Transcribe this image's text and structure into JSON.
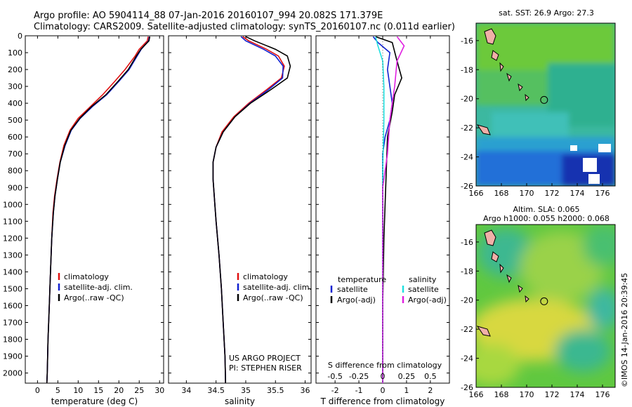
{
  "header": {
    "line1": "Argo profile: AO 5904114_88 07-Jan-2016 20160107_994 20.082S 171.379E",
    "line2": "Climatology: CARS2009. Satellite-adjusted climatology: synTS_20160107.nc (0.011d earlier)"
  },
  "colors": {
    "clim": "#e01010",
    "sat": "#1020d0",
    "argo": "#000000",
    "sat_s": "#20e0e0",
    "argo_s": "#e020e0"
  },
  "chart_data": [
    {
      "type": "line",
      "xlabel": "temperature (deg C)",
      "ylabel": "",
      "xlim": [
        -3,
        31
      ],
      "ylim": [
        2060,
        0
      ],
      "xticks": [
        0,
        5,
        10,
        15,
        20,
        25,
        30
      ],
      "yticks": [
        0,
        100,
        200,
        300,
        400,
        500,
        600,
        700,
        800,
        900,
        1000,
        1100,
        1200,
        1300,
        1400,
        1500,
        1600,
        1700,
        1800,
        1900,
        2000
      ],
      "legend": [
        "climatology",
        "satellite-adj. clim.",
        "Argo(..raw -QC)"
      ],
      "series": [
        {
          "name": "climatology",
          "color_key": "clim",
          "points": [
            [
              27.2,
              5
            ],
            [
              27.0,
              30
            ],
            [
              25.0,
              80
            ],
            [
              24.0,
              120
            ],
            [
              21.5,
              200
            ],
            [
              19.0,
              270
            ],
            [
              16.0,
              350
            ],
            [
              13.0,
              420
            ],
            [
              10.0,
              490
            ],
            [
              8.0,
              560
            ],
            [
              6.5,
              650
            ],
            [
              5.5,
              750
            ],
            [
              4.8,
              850
            ],
            [
              4.2,
              950
            ],
            [
              3.8,
              1050
            ],
            [
              3.5,
              1200
            ],
            [
              3.2,
              1400
            ],
            [
              2.9,
              1600
            ],
            [
              2.6,
              1800
            ],
            [
              2.4,
              2000
            ],
            [
              2.3,
              2060
            ]
          ]
        },
        {
          "name": "satellite-adj. clim.",
          "color_key": "sat",
          "points": [
            [
              27.5,
              5
            ],
            [
              27.3,
              30
            ],
            [
              25.5,
              80
            ],
            [
              24.5,
              120
            ],
            [
              22.5,
              200
            ],
            [
              20.0,
              270
            ],
            [
              17.0,
              350
            ],
            [
              13.5,
              420
            ],
            [
              10.5,
              490
            ],
            [
              8.3,
              560
            ],
            [
              6.8,
              650
            ],
            [
              5.6,
              750
            ],
            [
              4.9,
              850
            ],
            [
              4.3,
              950
            ],
            [
              3.9,
              1050
            ],
            [
              3.5,
              1200
            ],
            [
              3.2,
              1400
            ],
            [
              2.9,
              1600
            ],
            [
              2.6,
              1800
            ],
            [
              2.4,
              2000
            ],
            [
              2.3,
              2060
            ]
          ]
        },
        {
          "name": "Argo(..raw -QC)",
          "color_key": "argo",
          "points": [
            [
              27.6,
              5
            ],
            [
              27.4,
              30
            ],
            [
              25.4,
              80
            ],
            [
              24.3,
              120
            ],
            [
              22.3,
              200
            ],
            [
              19.8,
              270
            ],
            [
              16.8,
              350
            ],
            [
              13.3,
              420
            ],
            [
              10.4,
              490
            ],
            [
              8.2,
              560
            ],
            [
              6.7,
              650
            ],
            [
              5.6,
              750
            ],
            [
              4.9,
              850
            ],
            [
              4.3,
              950
            ],
            [
              3.9,
              1050
            ],
            [
              3.5,
              1200
            ],
            [
              3.2,
              1400
            ],
            [
              2.9,
              1600
            ],
            [
              2.6,
              1800
            ],
            [
              2.4,
              2000
            ],
            [
              2.3,
              2060
            ]
          ]
        }
      ]
    },
    {
      "type": "line",
      "xlabel": "salinity",
      "ylabel": "",
      "xlim": [
        33.7,
        36.1
      ],
      "ylim": [
        2060,
        0
      ],
      "xticks": [
        34,
        34.5,
        35,
        35.5,
        36
      ],
      "legend": [
        "climatology",
        "satellite-adj. clim.",
        "Argo(..raw -QC)"
      ],
      "series": [
        {
          "name": "climatology",
          "color_key": "clim",
          "points": [
            [
              34.95,
              5
            ],
            [
              35.05,
              30
            ],
            [
              35.35,
              80
            ],
            [
              35.55,
              120
            ],
            [
              35.65,
              180
            ],
            [
              35.6,
              250
            ],
            [
              35.35,
              320
            ],
            [
              35.05,
              400
            ],
            [
              34.8,
              480
            ],
            [
              34.6,
              570
            ],
            [
              34.5,
              660
            ],
            [
              34.45,
              750
            ],
            [
              34.45,
              850
            ],
            [
              34.47,
              950
            ],
            [
              34.5,
              1100
            ],
            [
              34.55,
              1300
            ],
            [
              34.59,
              1500
            ],
            [
              34.62,
              1700
            ],
            [
              34.65,
              1900
            ],
            [
              34.66,
              2060
            ]
          ]
        },
        {
          "name": "satellite-adj. clim.",
          "color_key": "sat",
          "points": [
            [
              34.92,
              5
            ],
            [
              35.0,
              30
            ],
            [
              35.3,
              80
            ],
            [
              35.5,
              120
            ],
            [
              35.63,
              180
            ],
            [
              35.62,
              250
            ],
            [
              35.38,
              320
            ],
            [
              35.07,
              400
            ],
            [
              34.82,
              480
            ],
            [
              34.62,
              570
            ],
            [
              34.5,
              660
            ],
            [
              34.45,
              750
            ],
            [
              34.45,
              850
            ],
            [
              34.47,
              950
            ],
            [
              34.5,
              1100
            ],
            [
              34.55,
              1300
            ],
            [
              34.59,
              1500
            ],
            [
              34.62,
              1700
            ],
            [
              34.65,
              1900
            ],
            [
              34.66,
              2060
            ]
          ]
        },
        {
          "name": "Argo(..raw -QC)",
          "color_key": "argo",
          "points": [
            [
              35.0,
              5
            ],
            [
              35.15,
              30
            ],
            [
              35.5,
              80
            ],
            [
              35.7,
              120
            ],
            [
              35.75,
              180
            ],
            [
              35.7,
              250
            ],
            [
              35.42,
              320
            ],
            [
              35.08,
              400
            ],
            [
              34.82,
              480
            ],
            [
              34.62,
              570
            ],
            [
              34.5,
              660
            ],
            [
              34.45,
              750
            ],
            [
              34.45,
              850
            ],
            [
              34.47,
              950
            ],
            [
              34.5,
              1100
            ],
            [
              34.55,
              1300
            ],
            [
              34.59,
              1500
            ],
            [
              34.62,
              1700
            ],
            [
              34.65,
              1900
            ],
            [
              34.66,
              2060
            ]
          ]
        }
      ],
      "annotations": [
        "US ARGO PROJECT",
        "PI: STEPHEN RISER"
      ]
    },
    {
      "type": "line",
      "xlabel": "T difference from climatology",
      "xlabel2": "S difference from climatology",
      "xlim": [
        -2.8,
        2.8
      ],
      "ylim": [
        2060,
        0
      ],
      "xticks": [
        -2,
        -1,
        0,
        1,
        2
      ],
      "xticks_s": [
        "-0.5",
        "-0.25",
        "0",
        "0.25",
        "0.5"
      ],
      "legend_t_title": "temperature",
      "legend_s_title": "salinity",
      "legend": [
        "satellite",
        "Argo(-adj)",
        "satellite",
        "Argo(-adj)"
      ],
      "series": [
        {
          "name": "satellite",
          "color_key": "sat",
          "points": [
            [
              -0.4,
              5
            ],
            [
              -0.2,
              40
            ],
            [
              0.3,
              100
            ],
            [
              0.2,
              200
            ],
            [
              0.3,
              300
            ],
            [
              0.4,
              400
            ],
            [
              0.3,
              500
            ],
            [
              0.1,
              600
            ],
            [
              0.0,
              700
            ],
            [
              0.0,
              900
            ],
            [
              0.0,
              1200
            ],
            [
              0.0,
              1600
            ],
            [
              0.0,
              2060
            ]
          ]
        },
        {
          "name": "Argo(-adj)",
          "color_key": "argo",
          "points": [
            [
              -0.3,
              5
            ],
            [
              0.4,
              40
            ],
            [
              0.6,
              150
            ],
            [
              0.8,
              250
            ],
            [
              0.5,
              350
            ],
            [
              0.4,
              450
            ],
            [
              0.2,
              600
            ],
            [
              0.15,
              800
            ],
            [
              0.1,
              1000
            ],
            [
              0.05,
              1200
            ],
            [
              0.0,
              1600
            ],
            [
              0.0,
              2060
            ]
          ]
        },
        {
          "name": "satellite",
          "color_key": "sat_s",
          "points": [
            [
              -0.3,
              5
            ],
            [
              -0.2,
              60
            ],
            [
              0.0,
              150
            ],
            [
              0.05,
              300
            ],
            [
              0.05,
              500
            ],
            [
              0.0,
              800
            ],
            [
              0.0,
              2060
            ]
          ]
        },
        {
          "name": "Argo(-adj)",
          "color_key": "argo_s",
          "points": [
            [
              0.6,
              5
            ],
            [
              0.9,
              60
            ],
            [
              0.6,
              150
            ],
            [
              0.5,
              300
            ],
            [
              0.3,
              500
            ],
            [
              0.2,
              700
            ],
            [
              0.0,
              900
            ],
            [
              0.0,
              2060
            ]
          ]
        }
      ]
    },
    {
      "type": "heatmap",
      "title": "sat. SST: 26.9 Argo: 27.3",
      "xticks": [
        166,
        168,
        170,
        172,
        174,
        176
      ],
      "yticks": [
        -16,
        -18,
        -20,
        -22,
        -24,
        -26
      ],
      "xlim": [
        166,
        177
      ],
      "ylim": [
        -26,
        -14.8
      ]
    },
    {
      "type": "heatmap",
      "title": "Altim. SLA: 0.065",
      "subtitle": "Argo h1000: 0.055 h2000: 0.068",
      "xticks": [
        166,
        168,
        170,
        172,
        174,
        176
      ],
      "yticks": [
        -16,
        -18,
        -20,
        -22,
        -24,
        -26
      ],
      "xlim": [
        166,
        177
      ],
      "ylim": [
        -26,
        -14.8
      ]
    }
  ],
  "footer_vertical": "©IMOS 14-Jan-2016 20:39:45",
  "argo_position": {
    "lon": 171.379,
    "lat": -20.082
  }
}
